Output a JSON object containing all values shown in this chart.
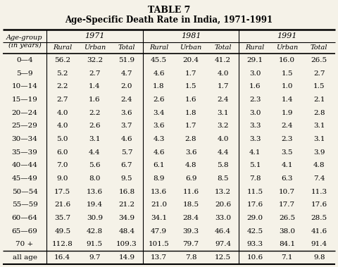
{
  "title_line1": "TABLE 7",
  "title_line2": "Age-Specific Death Rate in India, 1971-1991",
  "year_headers": [
    "1971",
    "1981",
    "1991"
  ],
  "sub_headers": [
    "Rural",
    "Urban",
    "Total",
    "Rural",
    "Urban",
    "Total",
    "Rural",
    "Urban",
    "Total"
  ],
  "rows": [
    [
      "0—4",
      "56.2",
      "32.2",
      "51.9",
      "45.5",
      "20.4",
      "41.2",
      "29.1",
      "16.0",
      "26.5"
    ],
    [
      "5—9",
      "5.2",
      "2.7",
      "4.7",
      "4.6",
      "1.7",
      "4.0",
      "3.0",
      "1.5",
      "2.7"
    ],
    [
      "10—14",
      "2.2",
      "1.4",
      "2.0",
      "1.8",
      "1.5",
      "1.7",
      "1.6",
      "1.0",
      "1.5"
    ],
    [
      "15—19",
      "2.7",
      "1.6",
      "2.4",
      "2.6",
      "1.6",
      "2.4",
      "2.3",
      "1.4",
      "2.1"
    ],
    [
      "20—24",
      "4.0",
      "2.2",
      "3.6",
      "3.4",
      "1.8",
      "3.1",
      "3.0",
      "1.9",
      "2.8"
    ],
    [
      "25—29",
      "4.0",
      "2.6",
      "3.7",
      "3.6",
      "1.7",
      "3.2",
      "3.3",
      "2.4",
      "3.1"
    ],
    [
      "30—34",
      "5.0",
      "3.1",
      "4.6",
      "4.3",
      "2.8",
      "4.0",
      "3.3",
      "2.3",
      "3.1"
    ],
    [
      "35—39",
      "6.0",
      "4.4",
      "5.7",
      "4.6",
      "3.6",
      "4.4",
      "4.1",
      "3.5",
      "3.9"
    ],
    [
      "40—44",
      "7.0",
      "5.6",
      "6.7",
      "6.1",
      "4.8",
      "5.8",
      "5.1",
      "4.1",
      "4.8"
    ],
    [
      "45—49",
      "9.0",
      "8.0",
      "9.5",
      "8.9",
      "6.9",
      "8.5",
      "7.8",
      "6.3",
      "7.4"
    ],
    [
      "50—54",
      "17.5",
      "13.6",
      "16.8",
      "13.6",
      "11.6",
      "13.2",
      "11.5",
      "10.7",
      "11.3"
    ],
    [
      "55—59",
      "21.6",
      "19.4",
      "21.2",
      "21.0",
      "18.5",
      "20.6",
      "17.6",
      "17.7",
      "17.6"
    ],
    [
      "60—64",
      "35.7",
      "30.9",
      "34.9",
      "34.1",
      "28.4",
      "33.0",
      "29.0",
      "26.5",
      "28.5"
    ],
    [
      "65—69",
      "49.5",
      "42.8",
      "48.4",
      "47.9",
      "39.3",
      "46.4",
      "42.5",
      "38.0",
      "41.6"
    ],
    [
      "70 +",
      "112.8",
      "91.5",
      "109.3",
      "101.5",
      "79.7",
      "97.4",
      "93.3",
      "84.1",
      "91.4"
    ]
  ],
  "footer_row": [
    "all age",
    "16.4",
    "9.7",
    "14.9",
    "13.7",
    "7.8",
    "12.5",
    "10.6",
    "7.1",
    "9.8"
  ],
  "bg_color": "#f5f2e8"
}
